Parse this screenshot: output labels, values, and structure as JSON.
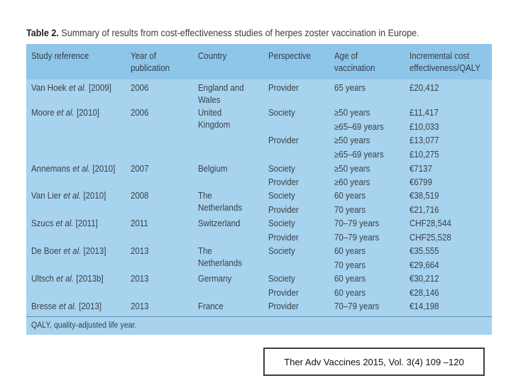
{
  "table": {
    "label": "Table 2.",
    "caption": "Summary of results from cost-effectiveness studies of herpes zoster vaccination in Europe.",
    "headers": {
      "study": "Study reference",
      "year_l1": "Year of",
      "year_l2": "publication",
      "country": "Country",
      "perspective": "Perspective",
      "age_l1": "Age of",
      "age_l2": "vaccination",
      "icer_l1": "Incremental cost",
      "icer_l2": "effectiveness/QALY"
    },
    "rows": {
      "vanhoek": {
        "author": "Van Hoek",
        "etal": "et al.",
        "year_ref": "[2009]",
        "year": "2006",
        "country_l1": "England and",
        "country_l2": "Wales",
        "perspective": "Provider",
        "age": "65 years",
        "icer": "£20,412"
      },
      "moore": {
        "author": "Moore",
        "etal": "et al.",
        "year_ref": "[2010]",
        "year": "2006",
        "country_l1": "United",
        "country_l2": "Kingdom",
        "perspective_1": "Society",
        "perspective_2": "Provider",
        "age_1": "≥50 years",
        "age_2": "≥65–69 years",
        "age_3": "≥50 years",
        "age_4": "≥65–69 years",
        "icer_1": "£11,417",
        "icer_2": "£10,033",
        "icer_3": "£13,077",
        "icer_4": "£10,275"
      },
      "annemans": {
        "author": "Annemans",
        "etal": "et al.",
        "year_ref": "[2010]",
        "year": "2007",
        "country": "Belgium",
        "perspective_1": "Society",
        "perspective_2": "Provider",
        "age_1": "≥50 years",
        "age_2": "≥60 years",
        "icer_1": "€7137",
        "icer_2": "€6799"
      },
      "vanlier": {
        "author": "Van Lier",
        "etal": "et al.",
        "year_ref": "[2010]",
        "year": "2008",
        "country_l1": "The",
        "country_l2": "Netherlands",
        "perspective_1": "Society",
        "perspective_2": "Provider",
        "age_1": "60 years",
        "age_2": "70 years",
        "icer_1": "€38,519",
        "icer_2": "€21,716"
      },
      "szucs": {
        "author": "Szucs",
        "etal": "et al.",
        "year_ref": "[2011]",
        "year": "2011",
        "country": "Switzerland",
        "perspective_1": "Society",
        "perspective_2": "Provider",
        "age_1": "70–79 years",
        "age_2": "70–79 years",
        "icer_1": "CHF28,544",
        "icer_2": "CHF25,528"
      },
      "deboer": {
        "author": "De Boer",
        "etal": "et al.",
        "year_ref": "[2013]",
        "year": "2013",
        "country_l1": "The",
        "country_l2": "Netherlands",
        "perspective": "Society",
        "age_1": "60 years",
        "age_2": "70 years",
        "icer_1": "€35,555",
        "icer_2": "€29,664"
      },
      "ultsch": {
        "author": "Ultsch",
        "etal": "et al.",
        "year_ref": "[2013b]",
        "year": "2013",
        "country": "Germany",
        "perspective_1": "Society",
        "perspective_2": "Provider",
        "age_1": "60 years",
        "age_2": "60 years",
        "icer_1": "€30,212",
        "icer_2": "€28,146"
      },
      "bresse": {
        "author": "Bresse",
        "etal": "et al.",
        "year_ref": "[2013]",
        "year": "2013",
        "country": "France",
        "perspective": "Provider",
        "age": "70–79 years",
        "icer": "€14,198"
      }
    },
    "footnote": "QALY, quality-adjusted life year."
  },
  "citation": "Ther Adv Vaccines 2015, Vol. 3(4) 109 –120"
}
